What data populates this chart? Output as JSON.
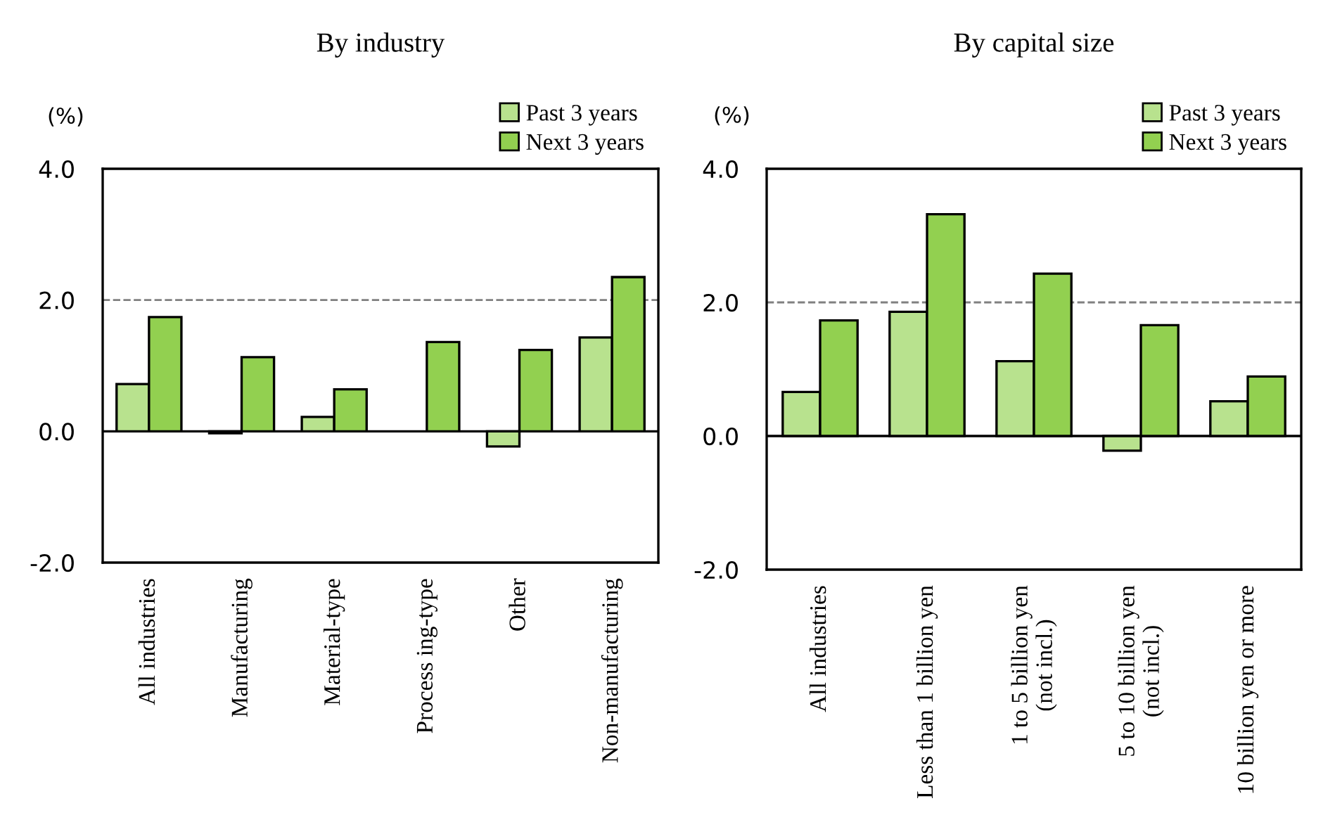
{
  "chart_data": [
    {
      "type": "bar",
      "title": "By industry",
      "ylabel": "(%)",
      "categories": [
        "All industries",
        "Manufacturing",
        "Material-type",
        "Process ing-type",
        "Other",
        "Non-manufacturing"
      ],
      "series": [
        {
          "name": "Past 3 years",
          "color": "#b8e28e",
          "values": [
            0.72,
            -0.03,
            0.22,
            null,
            -0.23,
            1.43
          ]
        },
        {
          "name": "Next 3 years",
          "color": "#92d050",
          "values": [
            1.74,
            1.13,
            0.64,
            1.36,
            1.24,
            2.35
          ]
        }
      ],
      "ylim": [
        -2.0,
        4.0
      ],
      "yticks": [
        {
          "value": -2,
          "label": "-2.0"
        },
        {
          "value": 0,
          "label": "0.0"
        },
        {
          "value": 2,
          "label": "2.0"
        },
        {
          "value": 4,
          "label": "4.0"
        }
      ],
      "ref_lines": [
        {
          "axis": "y",
          "value": 2.0,
          "color": "#808080",
          "line_style": "dashed"
        }
      ],
      "legend": "top right",
      "grid": false
    },
    {
      "type": "bar",
      "title": "By capital size",
      "ylabel": "(%)",
      "categories": [
        "All industries",
        "Less than 1 billion yen",
        "1 to 5 billion yen\n(not incl.)",
        "5 to 10 billion yen\n(not incl.)",
        "10 billion yen or more"
      ],
      "series": [
        {
          "name": "Past 3 years",
          "color": "#b8e28e",
          "values": [
            0.66,
            1.86,
            1.12,
            -0.22,
            0.52
          ]
        },
        {
          "name": "Next 3 years",
          "color": "#92d050",
          "values": [
            1.73,
            3.32,
            2.43,
            1.66,
            0.89
          ]
        }
      ],
      "ylim": [
        -2.0,
        4.0
      ],
      "yticks": [
        {
          "value": -2,
          "label": "-2.0"
        },
        {
          "value": 0,
          "label": "0.0"
        },
        {
          "value": 2,
          "label": "2.0"
        },
        {
          "value": 4,
          "label": "4.0"
        }
      ],
      "ref_lines": [
        {
          "axis": "y",
          "value": 2.0,
          "color": "#808080",
          "line_style": "dashed"
        }
      ],
      "legend": "top right",
      "grid": false
    }
  ]
}
